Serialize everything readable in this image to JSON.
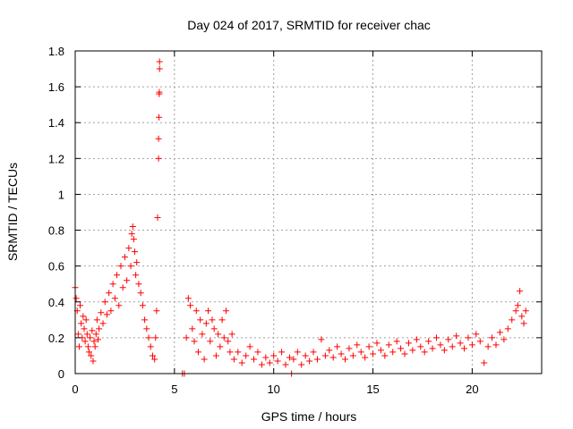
{
  "chart_data": {
    "type": "scatter",
    "title": "Day 024 of 2017, SRMTID for receiver chac",
    "xlabel": "GPS time / hours",
    "ylabel": "SRMTID / TECUs",
    "xlim": [
      0,
      23.5
    ],
    "ylim": [
      0,
      1.8
    ],
    "x_ticks": [
      {
        "value": 0,
        "label": "0"
      },
      {
        "value": 5,
        "label": "5"
      },
      {
        "value": 10,
        "label": "10"
      },
      {
        "value": 15,
        "label": "15"
      },
      {
        "value": 20,
        "label": "20"
      }
    ],
    "y_ticks": [
      {
        "value": 0,
        "label": "0"
      },
      {
        "value": 0.2,
        "label": "0.2"
      },
      {
        "value": 0.4,
        "label": "0.4"
      },
      {
        "value": 0.6,
        "label": "0.6"
      },
      {
        "value": 0.8,
        "label": "0.8"
      },
      {
        "value": 1.0,
        "label": "1"
      },
      {
        "value": 1.2,
        "label": "1.2"
      },
      {
        "value": 1.4,
        "label": "1.4"
      },
      {
        "value": 1.6,
        "label": "1.6"
      },
      {
        "value": 1.8,
        "label": "1.8"
      }
    ],
    "grid": true,
    "marker": "+",
    "color": "#ff0000",
    "series": [
      {
        "name": "SRMTID",
        "points": [
          [
            0.0,
            0.48
          ],
          [
            0.05,
            0.42
          ],
          [
            0.1,
            0.35
          ],
          [
            0.15,
            0.22
          ],
          [
            0.2,
            0.15
          ],
          [
            0.25,
            0.38
          ],
          [
            0.3,
            0.28
          ],
          [
            0.35,
            0.2
          ],
          [
            0.4,
            0.32
          ],
          [
            0.45,
            0.25
          ],
          [
            0.5,
            0.18
          ],
          [
            0.55,
            0.3
          ],
          [
            0.6,
            0.22
          ],
          [
            0.65,
            0.15
          ],
          [
            0.7,
            0.12
          ],
          [
            0.75,
            0.2
          ],
          [
            0.8,
            0.1
          ],
          [
            0.85,
            0.24
          ],
          [
            0.9,
            0.07
          ],
          [
            0.95,
            0.18
          ],
          [
            1.0,
            0.15
          ],
          [
            1.05,
            0.22
          ],
          [
            1.1,
            0.3
          ],
          [
            1.15,
            0.19
          ],
          [
            1.2,
            0.25
          ],
          [
            1.3,
            0.34
          ],
          [
            1.4,
            0.28
          ],
          [
            1.5,
            0.4
          ],
          [
            1.6,
            0.33
          ],
          [
            1.7,
            0.45
          ],
          [
            1.8,
            0.35
          ],
          [
            1.9,
            0.5
          ],
          [
            2.0,
            0.42
          ],
          [
            2.1,
            0.55
          ],
          [
            2.2,
            0.38
          ],
          [
            2.3,
            0.6
          ],
          [
            2.4,
            0.48
          ],
          [
            2.5,
            0.65
          ],
          [
            2.6,
            0.52
          ],
          [
            2.7,
            0.7
          ],
          [
            2.8,
            0.6
          ],
          [
            2.85,
            0.78
          ],
          [
            2.9,
            0.82
          ],
          [
            2.95,
            0.75
          ],
          [
            3.0,
            0.68
          ],
          [
            3.05,
            0.55
          ],
          [
            3.1,
            0.62
          ],
          [
            3.2,
            0.5
          ],
          [
            3.3,
            0.45
          ],
          [
            3.4,
            0.38
          ],
          [
            3.5,
            0.3
          ],
          [
            3.6,
            0.25
          ],
          [
            3.7,
            0.2
          ],
          [
            3.8,
            0.15
          ],
          [
            3.9,
            0.1
          ],
          [
            4.0,
            0.08
          ],
          [
            4.05,
            0.2
          ],
          [
            4.1,
            0.35
          ],
          [
            4.15,
            0.87
          ],
          [
            4.2,
            1.2
          ],
          [
            4.2,
            1.31
          ],
          [
            4.22,
            1.43
          ],
          [
            4.23,
            1.56
          ],
          [
            4.24,
            1.57
          ],
          [
            4.25,
            1.7
          ],
          [
            4.25,
            1.74
          ],
          [
            5.4,
            0.0
          ],
          [
            5.5,
            0.0
          ],
          [
            5.6,
            0.2
          ],
          [
            5.7,
            0.42
          ],
          [
            5.8,
            0.38
          ],
          [
            5.9,
            0.25
          ],
          [
            6.0,
            0.18
          ],
          [
            6.1,
            0.35
          ],
          [
            6.2,
            0.12
          ],
          [
            6.3,
            0.3
          ],
          [
            6.4,
            0.22
          ],
          [
            6.5,
            0.08
          ],
          [
            6.6,
            0.28
          ],
          [
            6.7,
            0.35
          ],
          [
            6.8,
            0.18
          ],
          [
            6.9,
            0.3
          ],
          [
            7.0,
            0.25
          ],
          [
            7.1,
            0.1
          ],
          [
            7.2,
            0.22
          ],
          [
            7.3,
            0.15
          ],
          [
            7.4,
            0.3
          ],
          [
            7.5,
            0.2
          ],
          [
            7.6,
            0.35
          ],
          [
            7.7,
            0.18
          ],
          [
            7.8,
            0.12
          ],
          [
            7.9,
            0.22
          ],
          [
            8.0,
            0.08
          ],
          [
            8.2,
            0.12
          ],
          [
            8.4,
            0.06
          ],
          [
            8.6,
            0.1
          ],
          [
            8.8,
            0.15
          ],
          [
            9.0,
            0.08
          ],
          [
            9.2,
            0.12
          ],
          [
            9.4,
            0.05
          ],
          [
            9.6,
            0.09
          ],
          [
            9.8,
            0.06
          ],
          [
            10.0,
            0.1
          ],
          [
            10.2,
            0.07
          ],
          [
            10.4,
            0.12
          ],
          [
            10.6,
            0.05
          ],
          [
            10.8,
            0.09
          ],
          [
            10.9,
            0.0
          ],
          [
            11.0,
            0.08
          ],
          [
            11.2,
            0.12
          ],
          [
            11.4,
            0.05
          ],
          [
            11.6,
            0.1
          ],
          [
            11.8,
            0.07
          ],
          [
            12.0,
            0.12
          ],
          [
            12.2,
            0.08
          ],
          [
            12.4,
            0.19
          ],
          [
            12.6,
            0.1
          ],
          [
            12.8,
            0.13
          ],
          [
            13.0,
            0.09
          ],
          [
            13.2,
            0.15
          ],
          [
            13.4,
            0.11
          ],
          [
            13.6,
            0.08
          ],
          [
            13.8,
            0.14
          ],
          [
            14.0,
            0.1
          ],
          [
            14.2,
            0.16
          ],
          [
            14.4,
            0.12
          ],
          [
            14.6,
            0.09
          ],
          [
            14.8,
            0.15
          ],
          [
            15.0,
            0.11
          ],
          [
            15.2,
            0.17
          ],
          [
            15.4,
            0.13
          ],
          [
            15.6,
            0.1
          ],
          [
            15.8,
            0.16
          ],
          [
            16.0,
            0.12
          ],
          [
            16.2,
            0.18
          ],
          [
            16.4,
            0.14
          ],
          [
            16.6,
            0.11
          ],
          [
            16.8,
            0.17
          ],
          [
            17.0,
            0.13
          ],
          [
            17.2,
            0.19
          ],
          [
            17.4,
            0.15
          ],
          [
            17.6,
            0.12
          ],
          [
            17.8,
            0.18
          ],
          [
            18.0,
            0.14
          ],
          [
            18.2,
            0.2
          ],
          [
            18.4,
            0.16
          ],
          [
            18.6,
            0.13
          ],
          [
            18.8,
            0.19
          ],
          [
            19.0,
            0.15
          ],
          [
            19.2,
            0.21
          ],
          [
            19.4,
            0.17
          ],
          [
            19.6,
            0.14
          ],
          [
            19.8,
            0.2
          ],
          [
            20.0,
            0.16
          ],
          [
            20.2,
            0.22
          ],
          [
            20.4,
            0.18
          ],
          [
            20.6,
            0.06
          ],
          [
            20.8,
            0.15
          ],
          [
            21.0,
            0.2
          ],
          [
            21.2,
            0.16
          ],
          [
            21.4,
            0.23
          ],
          [
            21.6,
            0.19
          ],
          [
            21.8,
            0.25
          ],
          [
            22.0,
            0.3
          ],
          [
            22.2,
            0.35
          ],
          [
            22.3,
            0.38
          ],
          [
            22.4,
            0.46
          ],
          [
            22.5,
            0.32
          ],
          [
            22.6,
            0.28
          ],
          [
            22.7,
            0.35
          ]
        ]
      }
    ]
  }
}
